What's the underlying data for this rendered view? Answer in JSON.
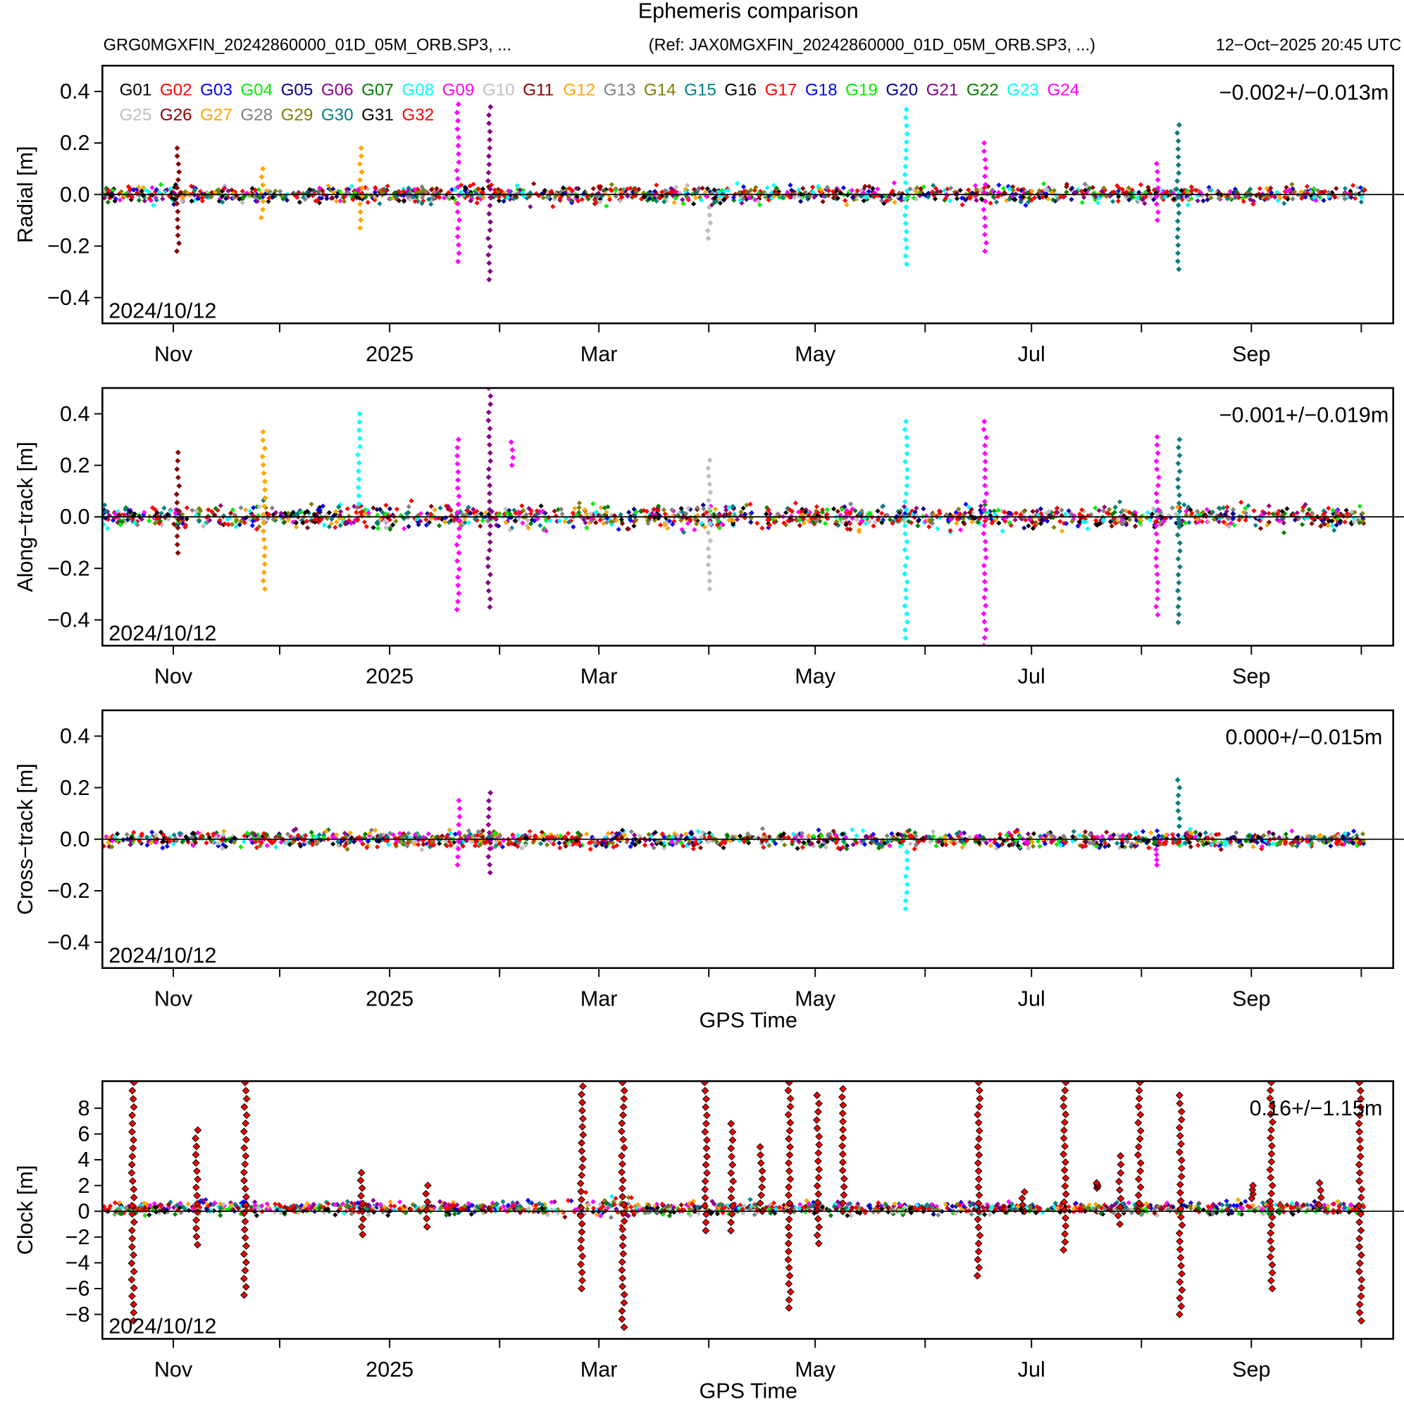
{
  "header": {
    "title": "Ephemeris comparison",
    "file": "GRG0MGXFIN_20242860000_01D_05M_ORB.SP3, ...",
    "ref": "(Ref: JAX0MGXFIN_20242860000_01D_05M_ORB.SP3, ...)",
    "timestamp": "12−Oct−2025 20:45 UTC"
  },
  "legend": [
    {
      "name": "G01",
      "color": "#000000"
    },
    {
      "name": "G02",
      "color": "#ff0000"
    },
    {
      "name": "G03",
      "color": "#0000ff"
    },
    {
      "name": "G04",
      "color": "#00ee00"
    },
    {
      "name": "G05",
      "color": "#00008b"
    },
    {
      "name": "G06",
      "color": "#8b008b"
    },
    {
      "name": "G07",
      "color": "#008000"
    },
    {
      "name": "G08",
      "color": "#00ffff"
    },
    {
      "name": "G09",
      "color": "#ff00ff"
    },
    {
      "name": "G10",
      "color": "#bebebe"
    },
    {
      "name": "G11",
      "color": "#8b0000"
    },
    {
      "name": "G12",
      "color": "#ffa500"
    },
    {
      "name": "G13",
      "color": "#808080"
    },
    {
      "name": "G14",
      "color": "#808000"
    },
    {
      "name": "G15",
      "color": "#008080"
    },
    {
      "name": "G16",
      "color": "#000000"
    },
    {
      "name": "G17",
      "color": "#ff0000"
    },
    {
      "name": "G18",
      "color": "#0000ff"
    },
    {
      "name": "G19",
      "color": "#00ee00"
    },
    {
      "name": "G20",
      "color": "#00008b"
    },
    {
      "name": "G21",
      "color": "#8b008b"
    },
    {
      "name": "G22",
      "color": "#008000"
    },
    {
      "name": "G23",
      "color": "#00ffff"
    },
    {
      "name": "G24",
      "color": "#ff00ff"
    },
    {
      "name": "G25",
      "color": "#bebebe"
    },
    {
      "name": "G26",
      "color": "#8b0000"
    },
    {
      "name": "G27",
      "color": "#ffa500"
    },
    {
      "name": "G28",
      "color": "#808080"
    },
    {
      "name": "G29",
      "color": "#808000"
    },
    {
      "name": "G30",
      "color": "#008080"
    },
    {
      "name": "G31",
      "color": "#000000"
    },
    {
      "name": "G32",
      "color": "#ff0000"
    }
  ],
  "chart_data": [
    {
      "type": "scatter",
      "ylabel": "Radial [m]",
      "xlabel": "",
      "ylim": [
        -0.5,
        0.5
      ],
      "yticks": [
        "−0.4",
        "−0.2",
        "0.0",
        "0.2",
        "0.4"
      ],
      "ytick_values": [
        -0.4,
        -0.2,
        0,
        0.2,
        0.4
      ],
      "stat": "−0.002+/−0.013m",
      "start_label": "2024/10/12",
      "noise": 0.03,
      "spikes": [
        {
          "day": 21.3,
          "min": -0.22,
          "max": 0.18,
          "sat": "G11"
        },
        {
          "day": 45,
          "min": -0.09,
          "max": 0.1,
          "sat": "G12"
        },
        {
          "day": 72.9,
          "min": -0.13,
          "max": 0.18,
          "sat": "G12"
        },
        {
          "day": 100.3,
          "min": -0.26,
          "max": 0.35,
          "sat": "G09"
        },
        {
          "day": 109.1,
          "min": -0.33,
          "max": 0.34,
          "sat": "G06"
        },
        {
          "day": 171.1,
          "min": -0.17,
          "max": -0.05,
          "sat": "G10"
        },
        {
          "day": 226.6,
          "min": -0.27,
          "max": 0.33,
          "sat": "G08"
        },
        {
          "day": 248.9,
          "min": -0.22,
          "max": 0.2,
          "sat": "G09"
        },
        {
          "day": 297.5,
          "min": -0.1,
          "max": 0.12,
          "sat": "G09"
        },
        {
          "day": 303.3,
          "min": -0.29,
          "max": 0.27,
          "sat": "G15"
        }
      ]
    },
    {
      "type": "scatter",
      "ylabel": "Along−track [m]",
      "xlabel": "",
      "ylim": [
        -0.5,
        0.5
      ],
      "yticks": [
        "−0.4",
        "−0.2",
        "0.0",
        "0.2",
        "0.4"
      ],
      "ytick_values": [
        -0.4,
        -0.2,
        0,
        0.2,
        0.4
      ],
      "stat": "−0.001+/−0.019m",
      "start_label": "2024/10/12",
      "noise": 0.04,
      "spikes": [
        {
          "day": 21.3,
          "min": -0.14,
          "max": 0.25,
          "sat": "G11"
        },
        {
          "day": 45.5,
          "min": -0.28,
          "max": 0.33,
          "sat": "G12"
        },
        {
          "day": 72.4,
          "min": 0.05,
          "max": 0.4,
          "sat": "G08"
        },
        {
          "day": 100.3,
          "min": -0.36,
          "max": 0.3,
          "sat": "G09"
        },
        {
          "day": 109.1,
          "min": -0.35,
          "max": 0.5,
          "sat": "G06"
        },
        {
          "day": 115.4,
          "min": 0.2,
          "max": 0.29,
          "sat": "G09"
        },
        {
          "day": 171.1,
          "min": -0.28,
          "max": 0.22,
          "sat": "G10"
        },
        {
          "day": 226.6,
          "min": -0.47,
          "max": 0.37,
          "sat": "G08"
        },
        {
          "day": 248.9,
          "min": -0.5,
          "max": 0.37,
          "sat": "G09"
        },
        {
          "day": 297.5,
          "min": -0.38,
          "max": 0.31,
          "sat": "G09"
        },
        {
          "day": 303.5,
          "min": -0.41,
          "max": 0.3,
          "sat": "G15"
        }
      ]
    },
    {
      "type": "scatter",
      "ylabel": "Cross−track [m]",
      "xlabel": "GPS Time",
      "ylim": [
        -0.5,
        0.5
      ],
      "yticks": [
        "−0.4",
        "−0.2",
        "0.0",
        "0.2",
        "0.4"
      ],
      "ytick_values": [
        -0.4,
        -0.2,
        0,
        0.2,
        0.4
      ],
      "stat": "0.000+/−0.015m",
      "start_label": "2024/10/12",
      "noise": 0.03,
      "spikes": [
        {
          "day": 100.5,
          "min": -0.1,
          "max": 0.15,
          "sat": "G09"
        },
        {
          "day": 109.1,
          "min": -0.13,
          "max": 0.18,
          "sat": "G06"
        },
        {
          "day": 226.6,
          "min": -0.27,
          "max": -0.05,
          "sat": "G08"
        },
        {
          "day": 303.5,
          "min": 0.05,
          "max": 0.23,
          "sat": "G15"
        },
        {
          "day": 297.3,
          "min": -0.1,
          "max": -0.04,
          "sat": "G09"
        }
      ]
    },
    {
      "type": "scatter",
      "ylabel": "Clock [m]",
      "xlabel": "GPS Time",
      "ylim": [
        -9.9,
        10.1
      ],
      "yticks": [
        "−8",
        "−6",
        "−4",
        "−2",
        "0",
        "2",
        "4",
        "6",
        "8"
      ],
      "ytick_values": [
        -8,
        -6,
        -4,
        -2,
        0,
        2,
        4,
        6,
        8
      ],
      "stat": "0.16+/−1.15m",
      "start_label": "2024/10/12",
      "noise": 0.35,
      "spikes": [
        {
          "day": 8.6,
          "min": -8.5,
          "max": 10
        },
        {
          "day": 26.6,
          "min": -2.6,
          "max": 6.3
        },
        {
          "day": 40.3,
          "min": -6.5,
          "max": 10
        },
        {
          "day": 73.2,
          "min": -1.8,
          "max": 3
        },
        {
          "day": 91.6,
          "min": -1.2,
          "max": 2
        },
        {
          "day": 135.2,
          "min": -6,
          "max": 9.7
        },
        {
          "day": 146.8,
          "min": -9,
          "max": 10
        },
        {
          "day": 170.1,
          "min": -1.5,
          "max": 10
        },
        {
          "day": 177.5,
          "min": -1.5,
          "max": 6.8
        },
        {
          "day": 185.8,
          "min": 0,
          "max": 5
        },
        {
          "day": 193.7,
          "min": -7.5,
          "max": 10
        },
        {
          "day": 201.8,
          "min": -2.5,
          "max": 9
        },
        {
          "day": 208.9,
          "min": 0,
          "max": 9.5
        },
        {
          "day": 247.1,
          "min": -5,
          "max": 10
        },
        {
          "day": 259.7,
          "min": 0,
          "max": 1.5
        },
        {
          "day": 271.4,
          "min": -3,
          "max": 10
        },
        {
          "day": 280.5,
          "min": 1.8,
          "max": 2.2
        },
        {
          "day": 286.8,
          "min": -1,
          "max": 4.3
        },
        {
          "day": 292.4,
          "min": 0,
          "max": 10
        },
        {
          "day": 304.1,
          "min": -8,
          "max": 9
        },
        {
          "day": 324.3,
          "min": 1,
          "max": 2
        },
        {
          "day": 329.6,
          "min": -6,
          "max": 10
        },
        {
          "day": 343.3,
          "min": 0.5,
          "max": 2.2
        },
        {
          "day": 354.7,
          "min": -8.5,
          "max": 10
        }
      ]
    }
  ],
  "xaxis": {
    "unit": "days since 2024-10-12",
    "xlim": [
      0,
      364
    ],
    "major": [
      {
        "day": 20,
        "label": "Nov"
      },
      {
        "day": 81,
        "label": "2025"
      },
      {
        "day": 140,
        "label": "Mar"
      },
      {
        "day": 201,
        "label": "May"
      },
      {
        "day": 262,
        "label": "Jul"
      },
      {
        "day": 324,
        "label": "Sep"
      }
    ],
    "minor": [
      50,
      112,
      171,
      232,
      293,
      355
    ]
  }
}
